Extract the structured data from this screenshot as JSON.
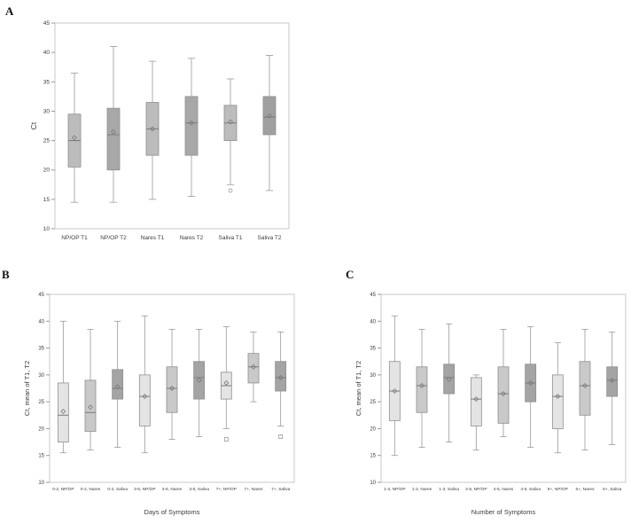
{
  "figure": {
    "background": "#ffffff"
  },
  "panel_labels": {
    "a": "A",
    "b": "B",
    "c": "C"
  },
  "chart_data": [
    {
      "type": "boxplot",
      "panel": "A",
      "title": "",
      "ylabel": "Ct",
      "xlabel": "",
      "ylim": [
        10,
        45
      ],
      "yticks": [
        10,
        15,
        20,
        25,
        30,
        35,
        40,
        45
      ],
      "grid": false,
      "colors": {
        "frame": "#c9c9c9",
        "axis": "#9a9a9a",
        "box_stroke": "#8f8f8f",
        "median": "#7a7a7a",
        "text": "#3c3c3c"
      },
      "boxes": [
        {
          "label": "NP/OP T1",
          "low": 14.5,
          "q1": 20.5,
          "median": 25.0,
          "mean": 25.5,
          "q3": 29.5,
          "high": 36.5,
          "fill": "#bcbcbc",
          "outliers": []
        },
        {
          "label": "NP/OP T2",
          "low": 14.5,
          "q1": 20.0,
          "median": 26.0,
          "mean": 26.5,
          "q3": 30.5,
          "high": 41.0,
          "fill": "#a8a8a8",
          "outliers": []
        },
        {
          "label": "Nares T1",
          "low": 15.0,
          "q1": 22.5,
          "median": 27.0,
          "mean": 27.0,
          "q3": 31.5,
          "high": 38.5,
          "fill": "#bcbcbc",
          "outliers": []
        },
        {
          "label": "Nares T2",
          "low": 15.5,
          "q1": 22.5,
          "median": 28.0,
          "mean": 28.0,
          "q3": 32.5,
          "high": 39.0,
          "fill": "#a8a8a8",
          "outliers": []
        },
        {
          "label": "Saliva T1",
          "low": 17.5,
          "q1": 25.0,
          "median": 28.0,
          "mean": 28.2,
          "q3": 31.0,
          "high": 35.5,
          "fill": "#bcbcbc",
          "outliers": [
            {
              "value": 16.5,
              "shape": "circle"
            }
          ]
        },
        {
          "label": "Saliva T2",
          "low": 16.5,
          "q1": 26.0,
          "median": 29.0,
          "mean": 29.2,
          "q3": 32.5,
          "high": 39.5,
          "fill": "#a0a0a0",
          "outliers": []
        }
      ]
    },
    {
      "type": "boxplot",
      "panel": "B",
      "title": "",
      "ylabel": "Ct, mean of T1, T2",
      "xlabel": "Days of Symptoms",
      "ylim": [
        10,
        45
      ],
      "yticks": [
        10,
        15,
        20,
        25,
        30,
        35,
        40,
        45
      ],
      "grid": false,
      "colors": {
        "frame": "#c9c9c9",
        "axis": "#9a9a9a",
        "box_stroke": "#8f8f8f",
        "median": "#7a7a7a",
        "text": "#3c3c3c"
      },
      "boxes": [
        {
          "label": "0-2,  NP/OP",
          "low": 15.5,
          "q1": 17.5,
          "median": 22.5,
          "mean": 23.2,
          "q3": 28.5,
          "high": 40.0,
          "fill": "#e4e4e4",
          "outliers": []
        },
        {
          "label": "0-2,  Nares",
          "low": 16.0,
          "q1": 19.5,
          "median": 23.0,
          "mean": 24.0,
          "q3": 29.0,
          "high": 38.5,
          "fill": "#c9c9c9",
          "outliers": []
        },
        {
          "label": "0-2,  Saliva",
          "low": 16.5,
          "q1": 25.5,
          "median": 27.5,
          "mean": 27.8,
          "q3": 31.0,
          "high": 40.0,
          "fill": "#a4a4a4",
          "outliers": []
        },
        {
          "label": "3-6,  NP/OP",
          "low": 15.5,
          "q1": 20.5,
          "median": 26.0,
          "mean": 26.0,
          "q3": 30.0,
          "high": 41.0,
          "fill": "#e4e4e4",
          "outliers": []
        },
        {
          "label": "3-6,  Nares",
          "low": 18.0,
          "q1": 23.0,
          "median": 27.5,
          "mean": 27.5,
          "q3": 31.5,
          "high": 38.5,
          "fill": "#c9c9c9",
          "outliers": []
        },
        {
          "label": "3-6,  Saliva",
          "low": 18.5,
          "q1": 25.5,
          "median": 29.5,
          "mean": 29.0,
          "q3": 32.5,
          "high": 38.5,
          "fill": "#a4a4a4",
          "outliers": []
        },
        {
          "label": "7+,  NP/OP",
          "low": 20.0,
          "q1": 25.5,
          "median": 28.0,
          "mean": 28.5,
          "q3": 30.5,
          "high": 39.0,
          "fill": "#e4e4e4",
          "outliers": [
            {
              "value": 18.0,
              "shape": "square"
            }
          ]
        },
        {
          "label": "7+,  Nares",
          "low": 25.0,
          "q1": 28.5,
          "median": 31.5,
          "mean": 31.5,
          "q3": 34.0,
          "high": 38.0,
          "fill": "#c9c9c9",
          "outliers": []
        },
        {
          "label": "7+,  Saliva",
          "low": 20.5,
          "q1": 27.0,
          "median": 29.5,
          "mean": 29.5,
          "q3": 32.5,
          "high": 38.0,
          "fill": "#a4a4a4",
          "outliers": [
            {
              "value": 18.5,
              "shape": "square"
            }
          ]
        }
      ]
    },
    {
      "type": "boxplot",
      "panel": "C",
      "title": "",
      "ylabel": "Ct, mean of T1, T2",
      "xlabel": "Number of Symptoms",
      "ylim": [
        10,
        45
      ],
      "yticks": [
        10,
        15,
        20,
        25,
        30,
        35,
        40,
        45
      ],
      "grid": false,
      "colors": {
        "frame": "#c9c9c9",
        "axis": "#9a9a9a",
        "box_stroke": "#8f8f8f",
        "median": "#7a7a7a",
        "text": "#3c3c3c"
      },
      "boxes": [
        {
          "label": "1-3,  NP/OP",
          "low": 15.0,
          "q1": 21.5,
          "median": 27.0,
          "mean": 27.0,
          "q3": 32.5,
          "high": 41.0,
          "fill": "#e4e4e4",
          "outliers": []
        },
        {
          "label": "1-3,  Nares",
          "low": 16.5,
          "q1": 23.0,
          "median": 28.0,
          "mean": 28.0,
          "q3": 31.5,
          "high": 38.5,
          "fill": "#c9c9c9",
          "outliers": []
        },
        {
          "label": "1-3,  Saliva",
          "low": 17.5,
          "q1": 26.5,
          "median": 29.5,
          "mean": 29.2,
          "q3": 32.0,
          "high": 39.5,
          "fill": "#a4a4a4",
          "outliers": []
        },
        {
          "label": "4-5,  NP/OP",
          "low": 16.0,
          "q1": 20.5,
          "median": 25.5,
          "mean": 25.5,
          "q3": 29.5,
          "high": 30.0,
          "fill": "#e4e4e4",
          "outliers": []
        },
        {
          "label": "4-5,  Nares",
          "low": 18.5,
          "q1": 21.0,
          "median": 26.5,
          "mean": 26.5,
          "q3": 31.5,
          "high": 38.5,
          "fill": "#c9c9c9",
          "outliers": []
        },
        {
          "label": "4-5,  Saliva",
          "low": 16.5,
          "q1": 25.0,
          "median": 28.5,
          "mean": 28.5,
          "q3": 32.0,
          "high": 39.0,
          "fill": "#a4a4a4",
          "outliers": []
        },
        {
          "label": "6+,  NP/OP",
          "low": 15.5,
          "q1": 20.0,
          "median": 26.0,
          "mean": 26.0,
          "q3": 30.0,
          "high": 36.0,
          "fill": "#e4e4e4",
          "outliers": []
        },
        {
          "label": "6+,  Nares",
          "low": 16.0,
          "q1": 22.5,
          "median": 28.0,
          "mean": 28.0,
          "q3": 32.5,
          "high": 38.5,
          "fill": "#c9c9c9",
          "outliers": []
        },
        {
          "label": "6+,  Saliva",
          "low": 17.0,
          "q1": 26.0,
          "median": 29.0,
          "mean": 29.0,
          "q3": 31.5,
          "high": 38.0,
          "fill": "#a4a4a4",
          "outliers": []
        }
      ]
    }
  ]
}
